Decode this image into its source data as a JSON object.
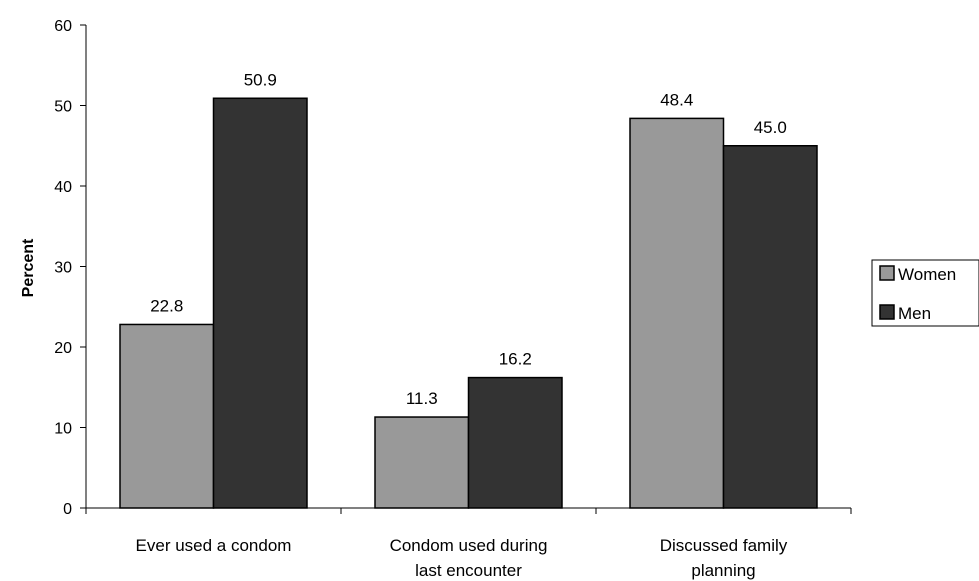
{
  "chart_data": {
    "type": "bar",
    "categories": [
      "Ever used a condom",
      "Condom used during last encounter",
      "Discussed family planning"
    ],
    "category_lines": [
      [
        "Ever used a condom"
      ],
      [
        "Condom used during",
        "last encounter"
      ],
      [
        "Discussed family",
        "planning"
      ]
    ],
    "series": [
      {
        "name": "Women",
        "values": [
          22.8,
          11.3,
          48.4
        ],
        "labels": [
          "22.8",
          "11.3",
          "48.4"
        ],
        "color": "#999999"
      },
      {
        "name": "Men",
        "values": [
          50.9,
          16.2,
          45.0
        ],
        "labels": [
          "50.9",
          "16.2",
          "45.0"
        ],
        "color": "#333333"
      }
    ],
    "ylabel": "Percent",
    "xlabel": "",
    "title": "",
    "ylim": [
      0,
      60
    ],
    "yticks": [
      0,
      10,
      20,
      30,
      40,
      50,
      60
    ],
    "grid": false,
    "legend": "right"
  }
}
